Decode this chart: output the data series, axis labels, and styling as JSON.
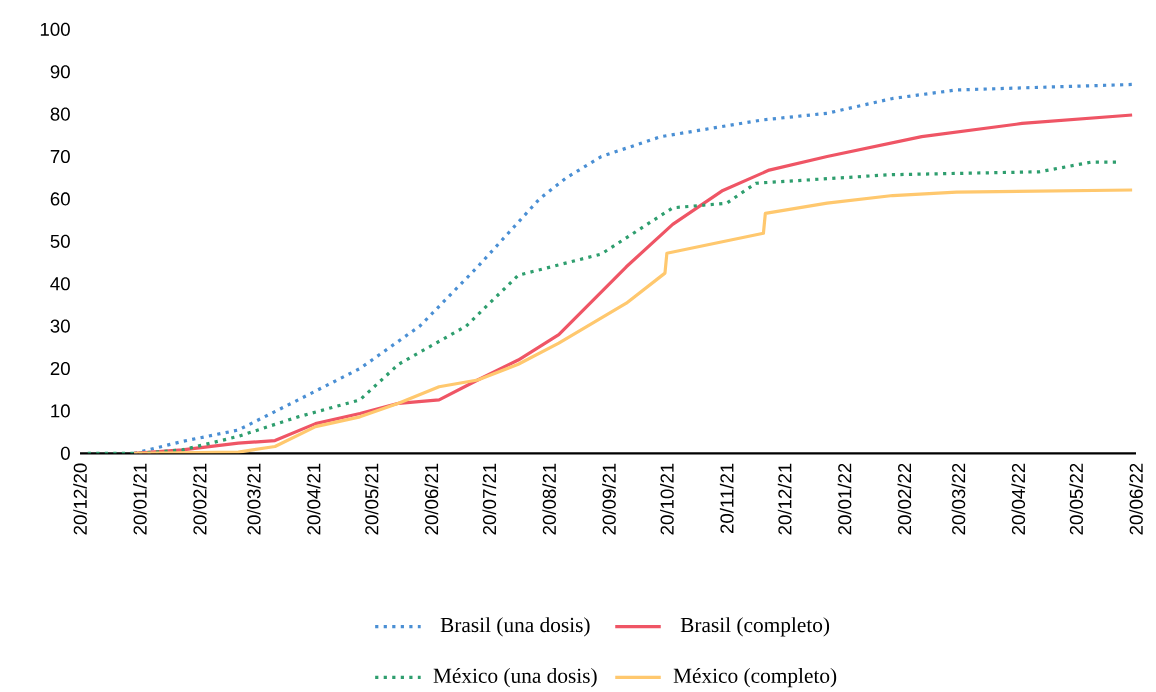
{
  "chart_data": {
    "type": "line",
    "legend": "bottom",
    "marker": "none",
    "xlim": [
      "2020-12-20",
      "2022-06-20"
    ],
    "ylim": [
      0,
      100
    ],
    "yticks": [
      0,
      10,
      20,
      30,
      40,
      50,
      60,
      70,
      80,
      90,
      100
    ],
    "xticks": [
      {
        "value": "2020-12-20",
        "label": "20/12/20"
      },
      {
        "value": "2021-01-20",
        "label": "20/01/21"
      },
      {
        "value": "2021-02-20",
        "label": "20/02/21"
      },
      {
        "value": "2021-03-20",
        "label": "20/03/21"
      },
      {
        "value": "2021-04-20",
        "label": "20/04/21"
      },
      {
        "value": "2021-05-20",
        "label": "20/05/21"
      },
      {
        "value": "2021-06-20",
        "label": "20/06/21"
      },
      {
        "value": "2021-07-20",
        "label": "20/07/21"
      },
      {
        "value": "2021-08-20",
        "label": "20/08/21"
      },
      {
        "value": "2021-09-20",
        "label": "20/09/21"
      },
      {
        "value": "2021-10-20",
        "label": "20/10/21"
      },
      {
        "value": "2021-11-20",
        "label": "20/11/21"
      },
      {
        "value": "2021-12-20",
        "label": "20/12/21"
      },
      {
        "value": "2022-01-20",
        "label": "20/01/22"
      },
      {
        "value": "2022-02-20",
        "label": "20/02/22"
      },
      {
        "value": "2022-03-20",
        "label": "20/03/22"
      },
      {
        "value": "2022-04-20",
        "label": "20/04/22"
      },
      {
        "value": "2022-05-20",
        "label": "20/05/22"
      },
      {
        "value": "2022-06-20",
        "label": "20/06/22"
      }
    ],
    "series": [
      {
        "name": "Brasil (una dosis)",
        "color": "#4a8fd4",
        "line_style": "dotted",
        "x": [
          "2021-01-17",
          "2021-02-11",
          "2021-03-12",
          "2021-04-12",
          "2021-05-14",
          "2021-06-14",
          "2021-07-14",
          "2021-08-15",
          "2021-08-29",
          "2021-09-16",
          "2021-10-17",
          "2021-12-08",
          "2022-01-11",
          "2022-02-14",
          "2022-03-19",
          "2022-06-18"
        ],
        "values": [
          0,
          2.8,
          5.5,
          12.6,
          20,
          30,
          44,
          60,
          65,
          70,
          74.7,
          78.6,
          80.2,
          83.7,
          85.7,
          87
        ]
      },
      {
        "name": "Brasil (completo)",
        "color": "#ef5565",
        "line_style": "solid",
        "x": [
          "2021-01-17",
          "2021-02-11",
          "2021-03-12",
          "2021-03-31",
          "2021-04-21",
          "2021-05-14",
          "2021-06-03",
          "2021-06-24",
          "2021-07-14",
          "2021-08-04",
          "2021-08-25",
          "2021-09-29",
          "2021-10-23",
          "2021-11-18",
          "2021-12-12",
          "2022-01-11",
          "2022-03-01",
          "2022-04-22",
          "2022-06-18"
        ],
        "values": [
          0,
          0.8,
          2.4,
          3,
          7,
          9.4,
          11.8,
          12.6,
          17.3,
          22,
          28,
          44,
          54,
          62,
          66.8,
          70,
          74.7,
          77.8,
          79.8
        ]
      },
      {
        "name": "México (una dosis)",
        "color": "#2e9e6e",
        "line_style": "dotted",
        "x": [
          "2020-12-24",
          "2021-01-20",
          "2021-02-11",
          "2021-03-12",
          "2021-04-12",
          "2021-05-14",
          "2021-06-03",
          "2021-07-08",
          "2021-08-04",
          "2021-09-16",
          "2021-10-23",
          "2021-11-20",
          "2021-12-05",
          "2022-02-12",
          "2022-05-01",
          "2022-05-28",
          "2022-06-10"
        ],
        "values": [
          0,
          0,
          0.8,
          4,
          8.6,
          12.6,
          21,
          30,
          42,
          47,
          57.9,
          59,
          63.7,
          65.7,
          66.4,
          68.7,
          68.7
        ]
      },
      {
        "name": "México (completo)",
        "color": "#ffc86e",
        "line_style": "solid",
        "x": [
          "2021-01-17",
          "2021-03-12",
          "2021-03-31",
          "2021-04-21",
          "2021-05-14",
          "2021-06-03",
          "2021-06-24",
          "2021-07-14",
          "2021-08-04",
          "2021-08-25",
          "2021-09-29",
          "2021-10-19",
          "2021-10-20",
          "2021-12-09",
          "2021-12-10",
          "2022-01-11",
          "2022-02-14",
          "2022-03-19",
          "2022-06-18"
        ],
        "values": [
          0,
          0.3,
          1.6,
          6.3,
          8.6,
          11.8,
          15.7,
          17.3,
          21,
          26,
          35.4,
          42.5,
          47.2,
          51.9,
          56.6,
          59,
          60.8,
          61.6,
          62.1
        ]
      }
    ]
  }
}
